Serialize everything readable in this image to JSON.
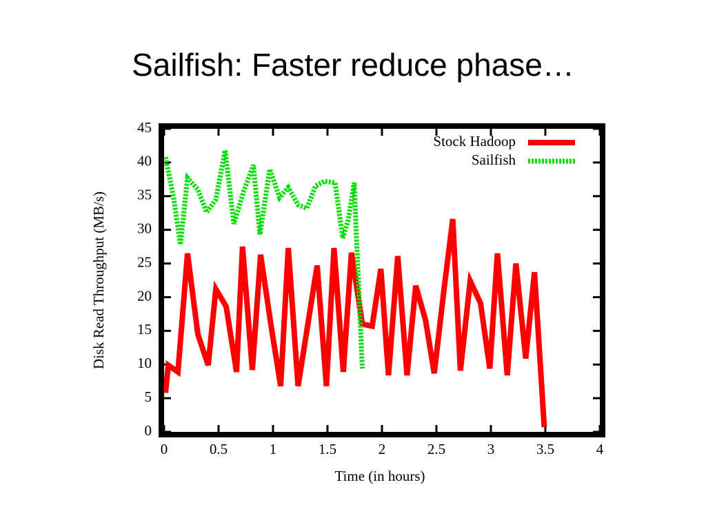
{
  "chart_data": {
    "type": "line",
    "title": "Sailfish: Faster reduce phase…",
    "xlabel": "Time (in hours)",
    "ylabel": "Disk Read Throughput (MB/s)",
    "xlim": [
      0,
      4
    ],
    "xticks": [
      0,
      0.5,
      1,
      1.5,
      2,
      2.5,
      3,
      3.5,
      4
    ],
    "ylim": [
      0,
      45
    ],
    "yticks": [
      0,
      5,
      10,
      15,
      20,
      25,
      30,
      35,
      40,
      45
    ],
    "legend": "upper right",
    "series": [
      {
        "name": "Stock Hadoop",
        "color": "#ff0000",
        "style": "solid",
        "x": [
          0.013,
          0.038,
          0.127,
          0.215,
          0.31,
          0.405,
          0.475,
          0.57,
          0.665,
          0.72,
          0.81,
          0.886,
          0.98,
          1.07,
          1.14,
          1.23,
          1.32,
          1.405,
          1.49,
          1.56,
          1.645,
          1.72,
          1.82,
          1.91,
          1.99,
          2.06,
          2.145,
          2.23,
          2.31,
          2.4,
          2.48,
          2.57,
          2.65,
          2.72,
          2.81,
          2.905,
          2.99,
          3.06,
          3.15,
          3.23,
          3.32,
          3.4,
          3.49
        ],
        "values": [
          5.8,
          9.9,
          8.9,
          26.5,
          14.5,
          9.9,
          21.2,
          18.6,
          8.9,
          27.5,
          9.2,
          26.3,
          16,
          6.8,
          27.3,
          6.8,
          16,
          24.7,
          6.8,
          27.3,
          8.9,
          26.6,
          16,
          15.7,
          24.2,
          8.4,
          26.1,
          8.4,
          21.7,
          16.6,
          8.7,
          21.2,
          31.6,
          9.1,
          22.4,
          19.1,
          9.4,
          26.5,
          8.4,
          25,
          10.9,
          23.7,
          0.7
        ]
      },
      {
        "name": "Sailfish",
        "color": "#00dd00",
        "style": "dotted",
        "x": [
          0.013,
          0.09,
          0.15,
          0.215,
          0.31,
          0.39,
          0.475,
          0.56,
          0.64,
          0.73,
          0.82,
          0.88,
          0.97,
          1.06,
          1.14,
          1.23,
          1.31,
          1.39,
          1.47,
          1.57,
          1.64,
          1.69,
          1.745,
          1.77,
          1.82
        ],
        "values": [
          40.8,
          34.5,
          27.8,
          37.7,
          36,
          32.6,
          34.5,
          41.8,
          30.9,
          35.7,
          39.6,
          29.3,
          39,
          34.8,
          36.3,
          33.7,
          33.2,
          36.5,
          37.2,
          37,
          28.8,
          31.4,
          37,
          27.3,
          9.4
        ]
      }
    ]
  }
}
